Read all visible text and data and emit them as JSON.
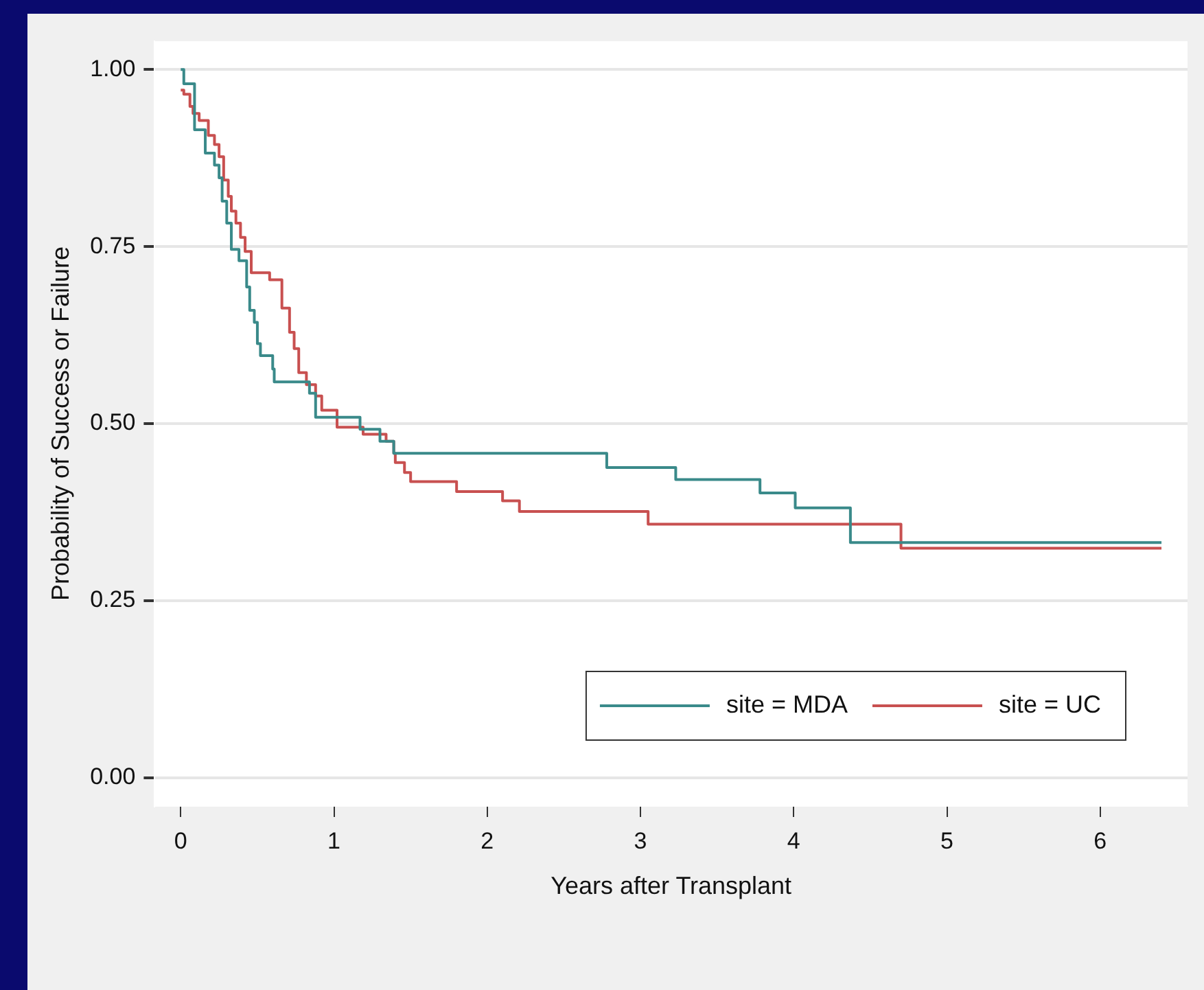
{
  "chart_data": {
    "type": "step",
    "xlabel": "Years after Transplant",
    "ylabel": "Probability of Success or Failure",
    "xlim": [
      -0.17,
      6.57
    ],
    "xticks": [
      0,
      1,
      2,
      3,
      4,
      5,
      6
    ],
    "ylim": [
      -0.04,
      1.04
    ],
    "yticks": [
      {
        "value": 0,
        "label": "0.00"
      },
      {
        "value": 0.25,
        "label": "0.25"
      },
      {
        "value": 0.5,
        "label": "0.50"
      },
      {
        "value": 0.75,
        "label": "0.75"
      },
      {
        "value": 1,
        "label": "1.00"
      }
    ],
    "grid": "y",
    "legend": "bottom right",
    "marker": "none",
    "line_style": "solid",
    "series": [
      {
        "name": "site = MDA",
        "color": "#3a8a8a",
        "x": [
          0,
          0.02,
          0.09,
          0.16,
          0.22,
          0.25,
          0.27,
          0.3,
          0.33,
          0.38,
          0.43,
          0.45,
          0.48,
          0.5,
          0.52,
          0.6,
          0.61,
          0.84,
          0.88,
          1.17,
          1.3,
          1.39,
          2.78,
          3.23,
          3.78,
          4.01,
          4.37,
          6.4
        ],
        "values": [
          1.0,
          0.98,
          0.915,
          0.882,
          0.865,
          0.847,
          0.814,
          0.783,
          0.746,
          0.73,
          0.693,
          0.66,
          0.643,
          0.613,
          0.596,
          0.577,
          0.559,
          0.543,
          0.509,
          0.492,
          0.475,
          0.458,
          0.438,
          0.421,
          0.402,
          0.381,
          0.332,
          0.332
        ]
      },
      {
        "name": "site = UC",
        "color": "#c85050",
        "x": [
          0,
          0.02,
          0.06,
          0.08,
          0.12,
          0.18,
          0.22,
          0.25,
          0.28,
          0.31,
          0.33,
          0.36,
          0.39,
          0.42,
          0.46,
          0.58,
          0.66,
          0.71,
          0.74,
          0.77,
          0.82,
          0.88,
          0.92,
          1.02,
          1.19,
          1.34,
          1.39,
          1.4,
          1.46,
          1.5,
          1.8,
          2.1,
          2.21,
          3.05,
          4.7,
          6.4
        ],
        "values": [
          0.971,
          0.965,
          0.948,
          0.938,
          0.928,
          0.907,
          0.894,
          0.877,
          0.844,
          0.821,
          0.8,
          0.783,
          0.763,
          0.743,
          0.713,
          0.703,
          0.663,
          0.629,
          0.606,
          0.572,
          0.555,
          0.539,
          0.519,
          0.495,
          0.485,
          0.475,
          0.458,
          0.445,
          0.431,
          0.418,
          0.404,
          0.391,
          0.376,
          0.358,
          0.324,
          0.324
        ]
      }
    ]
  }
}
